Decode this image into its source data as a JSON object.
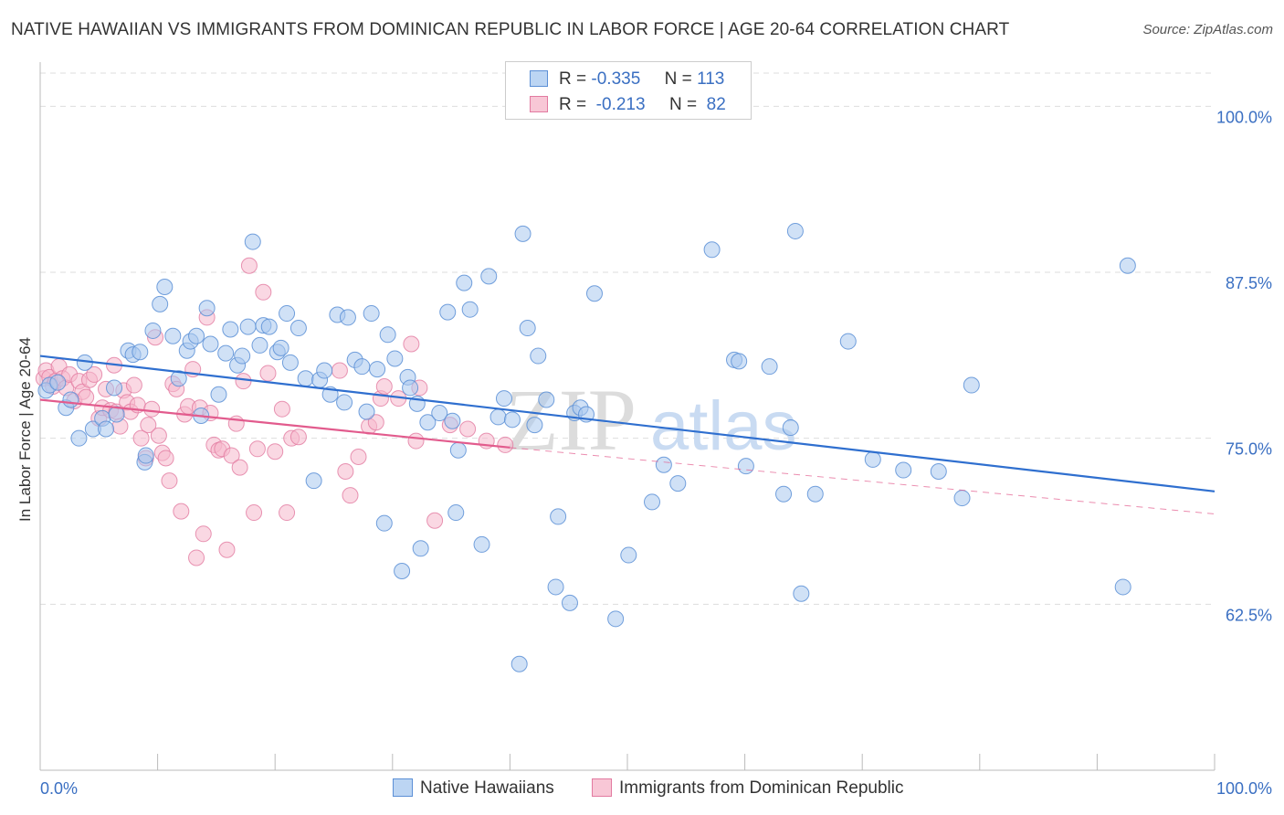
{
  "header": {
    "title": "NATIVE HAWAIIAN VS IMMIGRANTS FROM DOMINICAN REPUBLIC IN LABOR FORCE | AGE 20-64 CORRELATION CHART",
    "source": "Source: ZipAtlas.com"
  },
  "legend": {
    "r_label": "R =",
    "n_label": "N =",
    "rows": [
      {
        "r": "-0.335",
        "n": "113"
      },
      {
        "r": "-0.213",
        "n": "82"
      }
    ]
  },
  "watermark": {
    "zip": "ZIP",
    "atlas": "atlas"
  },
  "colors": {
    "blue_fill": "#a9c8ee",
    "blue_stroke": "#5b8fd6",
    "blue_line": "#2f6fcf",
    "pink_fill": "#f6b8cc",
    "pink_stroke": "#e27aa0",
    "pink_line": "#e25b8d",
    "tick_text": "#3a6fc2",
    "grid": "#dddddd"
  },
  "chart_data": {
    "type": "scatter",
    "title": "NATIVE HAWAIIAN VS IMMIGRANTS FROM DOMINICAN REPUBLIC IN LABOR FORCE | AGE 20-64 CORRELATION CHART",
    "xlabel": "",
    "ylabel": "In Labor Force | Age 20-64",
    "xlim": [
      0,
      100
    ],
    "ylim": [
      50,
      102.5
    ],
    "x_tick_labels": [
      "0.0%",
      "100.0%"
    ],
    "y_ticks": [
      62.5,
      75.0,
      87.5,
      100.0
    ],
    "y_tick_labels": [
      "62.5%",
      "75.0%",
      "87.5%",
      "100.0%"
    ],
    "grid": true,
    "legend_position": "top-center",
    "series": [
      {
        "name": "Native Hawaiians",
        "r": -0.335,
        "n": 113,
        "trend": {
          "x": [
            0,
            100
          ],
          "y": [
            81.2,
            71.0
          ]
        },
        "points": [
          [
            0.5,
            78.6
          ],
          [
            0.8,
            79.0
          ],
          [
            1.5,
            79.2
          ],
          [
            2.2,
            77.3
          ],
          [
            2.6,
            77.9
          ],
          [
            3.3,
            75.0
          ],
          [
            3.8,
            80.7
          ],
          [
            4.5,
            75.7
          ],
          [
            5.3,
            76.5
          ],
          [
            5.6,
            75.7
          ],
          [
            6.3,
            78.8
          ],
          [
            6.5,
            76.8
          ],
          [
            7.5,
            81.6
          ],
          [
            7.9,
            81.3
          ],
          [
            8.5,
            81.5
          ],
          [
            8.9,
            73.2
          ],
          [
            9.0,
            73.7
          ],
          [
            9.6,
            83.1
          ],
          [
            10.2,
            85.1
          ],
          [
            10.6,
            86.4
          ],
          [
            11.3,
            82.7
          ],
          [
            11.8,
            79.5
          ],
          [
            12.5,
            81.6
          ],
          [
            12.8,
            82.3
          ],
          [
            13.3,
            82.7
          ],
          [
            13.7,
            76.7
          ],
          [
            14.2,
            84.8
          ],
          [
            14.5,
            82.1
          ],
          [
            15.2,
            78.3
          ],
          [
            15.8,
            81.4
          ],
          [
            16.2,
            83.2
          ],
          [
            16.8,
            80.5
          ],
          [
            17.2,
            81.2
          ],
          [
            17.7,
            83.4
          ],
          [
            18.1,
            89.8
          ],
          [
            18.7,
            82.0
          ],
          [
            19.0,
            83.5
          ],
          [
            19.5,
            83.4
          ],
          [
            20.2,
            81.5
          ],
          [
            20.5,
            81.8
          ],
          [
            21.0,
            84.4
          ],
          [
            21.3,
            80.7
          ],
          [
            22.0,
            83.3
          ],
          [
            22.6,
            79.5
          ],
          [
            23.3,
            71.8
          ],
          [
            23.8,
            79.4
          ],
          [
            24.2,
            80.1
          ],
          [
            24.7,
            78.3
          ],
          [
            25.3,
            84.3
          ],
          [
            25.9,
            77.7
          ],
          [
            26.2,
            84.1
          ],
          [
            26.8,
            80.9
          ],
          [
            27.4,
            80.4
          ],
          [
            27.8,
            77.0
          ],
          [
            28.2,
            84.4
          ],
          [
            28.7,
            80.2
          ],
          [
            29.3,
            68.6
          ],
          [
            29.6,
            82.8
          ],
          [
            30.2,
            81.0
          ],
          [
            30.8,
            65.0
          ],
          [
            31.3,
            79.6
          ],
          [
            31.5,
            78.8
          ],
          [
            32.1,
            77.6
          ],
          [
            32.4,
            66.7
          ],
          [
            33.0,
            76.2
          ],
          [
            34.0,
            76.9
          ],
          [
            34.7,
            84.5
          ],
          [
            35.1,
            76.3
          ],
          [
            35.4,
            69.4
          ],
          [
            35.6,
            74.1
          ],
          [
            36.1,
            86.7
          ],
          [
            36.6,
            84.7
          ],
          [
            37.6,
            67.0
          ],
          [
            38.2,
            87.2
          ],
          [
            39.0,
            76.6
          ],
          [
            39.5,
            78.0
          ],
          [
            40.2,
            76.4
          ],
          [
            40.8,
            58.0
          ],
          [
            41.1,
            90.4
          ],
          [
            41.5,
            83.3
          ],
          [
            42.1,
            76.0
          ],
          [
            42.4,
            81.2
          ],
          [
            43.1,
            77.9
          ],
          [
            44.1,
            69.1
          ],
          [
            43.9,
            63.8
          ],
          [
            45.1,
            62.6
          ],
          [
            45.5,
            76.9
          ],
          [
            46.0,
            77.3
          ],
          [
            46.5,
            76.8
          ],
          [
            47.2,
            85.9
          ],
          [
            49.0,
            61.4
          ],
          [
            50.1,
            66.2
          ],
          [
            52.1,
            70.2
          ],
          [
            53.1,
            73.0
          ],
          [
            54.3,
            71.6
          ],
          [
            57.2,
            89.2
          ],
          [
            59.1,
            80.9
          ],
          [
            59.5,
            80.8
          ],
          [
            60.1,
            72.9
          ],
          [
            62.1,
            80.4
          ],
          [
            63.3,
            70.8
          ],
          [
            63.9,
            75.8
          ],
          [
            64.3,
            90.6
          ],
          [
            64.8,
            63.3
          ],
          [
            66.0,
            70.8
          ],
          [
            68.8,
            82.3
          ],
          [
            70.9,
            73.4
          ],
          [
            73.5,
            72.6
          ],
          [
            76.5,
            72.5
          ],
          [
            78.5,
            70.5
          ],
          [
            79.3,
            79.0
          ],
          [
            92.2,
            63.8
          ],
          [
            92.6,
            88.0
          ]
        ]
      },
      {
        "name": "Immigrants from Dominican Republic",
        "r": -0.213,
        "n": 82,
        "trend": {
          "x": [
            0,
            40
          ],
          "y": [
            77.9,
            74.3
          ]
        },
        "trend_dashed": {
          "x": [
            40,
            100
          ],
          "y": [
            74.3,
            69.3
          ]
        },
        "points": [
          [
            0.3,
            79.5
          ],
          [
            0.5,
            80.1
          ],
          [
            0.8,
            79.6
          ],
          [
            1.1,
            78.9
          ],
          [
            1.3,
            79.3
          ],
          [
            1.6,
            80.4
          ],
          [
            1.9,
            79.5
          ],
          [
            2.2,
            78.8
          ],
          [
            2.5,
            79.8
          ],
          [
            2.9,
            77.8
          ],
          [
            3.3,
            79.3
          ],
          [
            3.6,
            78.5
          ],
          [
            3.9,
            78.1
          ],
          [
            4.2,
            79.4
          ],
          [
            4.6,
            79.8
          ],
          [
            5.0,
            76.5
          ],
          [
            5.3,
            77.3
          ],
          [
            5.6,
            78.7
          ],
          [
            6.0,
            77.1
          ],
          [
            6.3,
            80.5
          ],
          [
            6.5,
            77.0
          ],
          [
            6.8,
            75.9
          ],
          [
            7.1,
            78.6
          ],
          [
            7.4,
            77.7
          ],
          [
            7.7,
            77.0
          ],
          [
            8.0,
            79.0
          ],
          [
            8.3,
            77.5
          ],
          [
            8.6,
            75.0
          ],
          [
            9.0,
            73.5
          ],
          [
            9.2,
            76.0
          ],
          [
            9.5,
            77.2
          ],
          [
            9.8,
            82.6
          ],
          [
            10.1,
            75.2
          ],
          [
            10.4,
            73.9
          ],
          [
            10.7,
            73.5
          ],
          [
            11.0,
            71.8
          ],
          [
            11.3,
            79.1
          ],
          [
            11.6,
            78.7
          ],
          [
            12.0,
            69.5
          ],
          [
            12.3,
            76.8
          ],
          [
            12.6,
            77.4
          ],
          [
            13.0,
            80.2
          ],
          [
            13.3,
            66.0
          ],
          [
            13.6,
            77.3
          ],
          [
            13.9,
            67.8
          ],
          [
            14.2,
            84.1
          ],
          [
            14.5,
            76.9
          ],
          [
            14.8,
            74.5
          ],
          [
            15.2,
            74.1
          ],
          [
            15.5,
            74.2
          ],
          [
            15.9,
            66.6
          ],
          [
            16.3,
            73.7
          ],
          [
            16.7,
            76.1
          ],
          [
            17.0,
            72.8
          ],
          [
            17.3,
            79.3
          ],
          [
            17.8,
            88.0
          ],
          [
            18.2,
            69.4
          ],
          [
            18.5,
            74.2
          ],
          [
            19.0,
            86.0
          ],
          [
            19.4,
            79.9
          ],
          [
            20.0,
            74.0
          ],
          [
            20.6,
            77.2
          ],
          [
            21.0,
            69.4
          ],
          [
            21.4,
            75.0
          ],
          [
            22.0,
            75.1
          ],
          [
            25.5,
            80.1
          ],
          [
            26.0,
            72.5
          ],
          [
            26.4,
            70.7
          ],
          [
            27.1,
            73.6
          ],
          [
            28.0,
            75.9
          ],
          [
            28.6,
            76.2
          ],
          [
            29.0,
            78.0
          ],
          [
            29.3,
            78.9
          ],
          [
            30.5,
            78.0
          ],
          [
            31.6,
            82.1
          ],
          [
            32.0,
            74.8
          ],
          [
            32.3,
            78.8
          ],
          [
            33.6,
            68.8
          ],
          [
            34.9,
            76.0
          ],
          [
            36.4,
            75.7
          ],
          [
            38.0,
            74.8
          ],
          [
            39.6,
            74.5
          ]
        ]
      }
    ]
  }
}
